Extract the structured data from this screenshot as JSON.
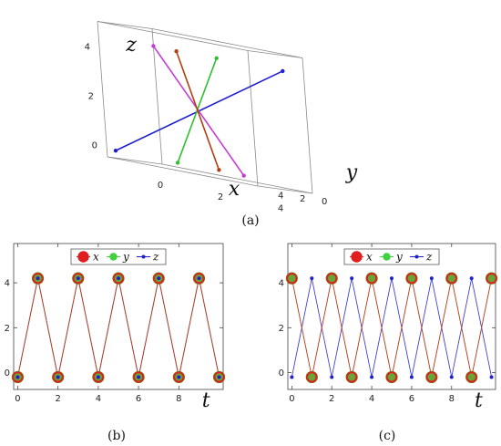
{
  "chart_data": [
    {
      "panel": "(a)",
      "type": "line3d",
      "axis_labels": {
        "x": "x",
        "y": "y",
        "z": "z"
      },
      "x_ticks": [
        "0",
        "2",
        "4"
      ],
      "y_ticks": [
        "0",
        "2",
        "4"
      ],
      "z_ticks": [
        "0",
        "2",
        "4"
      ],
      "xlim": [
        0,
        5
      ],
      "ylim": [
        0,
        5
      ],
      "zlim": [
        -0.5,
        5
      ],
      "box": true,
      "grid": false,
      "series": [
        {
          "color": "#1f1fd0",
          "points": [
            [
              0,
              4.2,
              -0.2
            ],
            [
              4.3,
              0,
              4.3
            ]
          ]
        },
        {
          "color": "#c33cd6",
          "points": [
            [
              0,
              0,
              4.3
            ],
            [
              4.3,
              4.3,
              -0.2
            ]
          ]
        },
        {
          "color": "#30c030",
          "points": [
            [
              2.1,
              0,
              4.3
            ],
            [
              2.1,
              4.3,
              -0.2
            ]
          ]
        },
        {
          "color": "#b04010",
          "points": [
            [
              3.0,
              3.0,
              -0.2
            ],
            [
              1.2,
              1.2,
              4.3
            ]
          ]
        }
      ]
    },
    {
      "panel": "(b)",
      "type": "line",
      "xlabel": "t",
      "x_ticks": [
        "0",
        "2",
        "4",
        "6",
        "8"
      ],
      "y_ticks": [
        "0",
        "2",
        "4"
      ],
      "xlim": [
        -0.2,
        10.2
      ],
      "ylim": [
        -0.75,
        5.75
      ],
      "legend": {
        "position": "top-center",
        "entries": [
          "x",
          "y",
          "z"
        ]
      },
      "x": [
        0,
        1,
        2,
        3,
        4,
        5,
        6,
        7,
        8,
        9,
        10
      ],
      "series": [
        {
          "name": "x",
          "color": "#e02020",
          "values": [
            -0.2,
            4.2,
            -0.2,
            4.2,
            -0.2,
            4.2,
            -0.2,
            4.2,
            -0.2,
            4.2,
            -0.2
          ]
        },
        {
          "name": "y",
          "color": "#40d040",
          "values": [
            -0.2,
            4.2,
            -0.2,
            4.2,
            -0.2,
            4.2,
            -0.2,
            4.2,
            -0.2,
            4.2,
            -0.2
          ]
        },
        {
          "name": "z",
          "color": "#2020cc",
          "values": [
            -0.2,
            4.2,
            -0.2,
            4.2,
            -0.2,
            4.2,
            -0.2,
            4.2,
            -0.2,
            4.2,
            -0.2
          ]
        }
      ]
    },
    {
      "panel": "(c)",
      "type": "line",
      "xlabel": "t",
      "x_ticks": [
        "0",
        "2",
        "4",
        "6",
        "8"
      ],
      "y_ticks": [
        "0",
        "2",
        "4"
      ],
      "xlim": [
        -0.2,
        10.2
      ],
      "ylim": [
        -0.75,
        5.75
      ],
      "legend": {
        "position": "top-center",
        "entries": [
          "x",
          "y",
          "z"
        ]
      },
      "x": [
        0,
        1,
        2,
        3,
        4,
        5,
        6,
        7,
        8,
        9,
        10
      ],
      "series": [
        {
          "name": "x",
          "color": "#e02020",
          "values": [
            4.2,
            -0.2,
            4.2,
            -0.2,
            4.2,
            -0.2,
            4.2,
            -0.2,
            4.2,
            -0.2,
            4.2
          ]
        },
        {
          "name": "y",
          "color": "#40d040",
          "values": [
            4.2,
            -0.2,
            4.2,
            -0.2,
            4.2,
            -0.2,
            4.2,
            -0.2,
            4.2,
            -0.2,
            4.2
          ]
        },
        {
          "name": "z",
          "color": "#2020cc",
          "values": [
            -0.2,
            4.2,
            -0.2,
            4.2,
            -0.2,
            4.2,
            -0.2,
            4.2,
            -0.2,
            4.2,
            -0.2
          ]
        }
      ]
    }
  ]
}
